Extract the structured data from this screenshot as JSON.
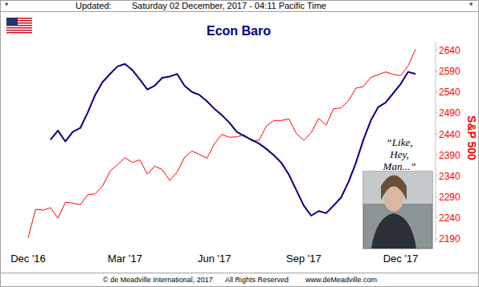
{
  "chart_data": {
    "type": "line",
    "title": "Econ Baro",
    "y_label": "S&P 500",
    "header": [
      "*",
      "Updated:",
      "Saturday 02 December, 2017 - 04:11 Pacific Time",
      "*"
    ],
    "footer": [
      "© de Meadville International, 2017",
      "All Rights Reserved",
      "www.deMeadville.com"
    ],
    "annotations": [
      "“Like, Hey, Man...”"
    ],
    "categories": [
      "Dec '16",
      null,
      null,
      null,
      null,
      null,
      null,
      null,
      null,
      null,
      null,
      null,
      null,
      "Mar '17",
      null,
      null,
      null,
      null,
      null,
      null,
      null,
      null,
      null,
      null,
      null,
      "Jun '17",
      null,
      null,
      null,
      null,
      null,
      null,
      null,
      null,
      null,
      null,
      null,
      "Sep '17",
      null,
      null,
      null,
      null,
      null,
      null,
      null,
      null,
      null,
      null,
      null,
      null,
      "Dec '17",
      null,
      null
    ],
    "series": [
      {
        "color": "#ff0000",
        "values": [
          2192,
          2260,
          2258,
          2264,
          2239,
          2277,
          2275,
          2271,
          2295,
          2297,
          2316,
          2351,
          2367,
          2383,
          2372,
          2378,
          2344,
          2363,
          2355,
          2329,
          2349,
          2384,
          2399,
          2391,
          2382,
          2416,
          2439,
          2432,
          2433,
          2438,
          2423,
          2425,
          2459,
          2472,
          2472,
          2476,
          2441,
          2425,
          2443,
          2477,
          2461,
          2500,
          2502,
          2519,
          2549,
          2553,
          2575,
          2581,
          2588,
          2582,
          2579,
          2602,
          2642
        ]
      },
      {
        "color": "#000080",
        "values": [
          null,
          null,
          null,
          2426,
          2448,
          2422,
          2445,
          2454,
          2491,
          2533,
          2564,
          2583,
          2601,
          2607,
          2592,
          2570,
          2546,
          2555,
          2574,
          2577,
          2583,
          2555,
          2540,
          2533,
          2518,
          2500,
          2485,
          2467,
          2445,
          2435,
          2426,
          2417,
          2404,
          2389,
          2371,
          2343,
          2306,
          2269,
          2245,
          2256,
          2251,
          2269,
          2288,
          2325,
          2371,
          2426,
          2472,
          2504,
          2515,
          2537,
          2559,
          2588,
          2583
        ]
      }
    ],
    "ylim": [
      2180,
      2660
    ],
    "yticks": [
      2190,
      2240,
      2290,
      2340,
      2390,
      2440,
      2490,
      2540,
      2590,
      2640
    ],
    "grid": false
  }
}
